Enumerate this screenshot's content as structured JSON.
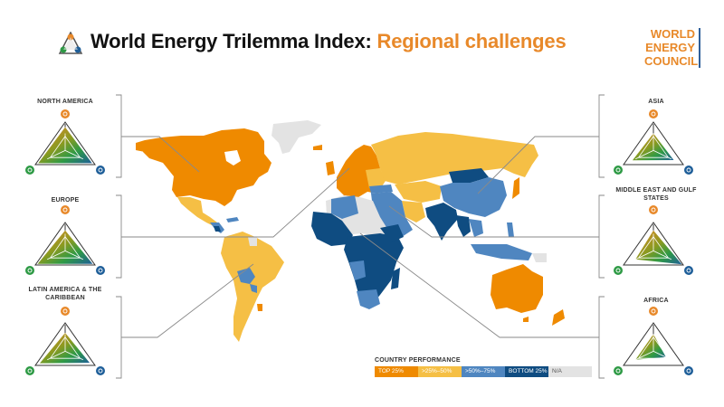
{
  "header": {
    "title_main": "World Energy Trilemma Index: ",
    "title_accent": "Regional challenges",
    "logo_icon": "trilemma-triangle-icon",
    "brand": {
      "line1": "WORLD",
      "line2": "ENERGY",
      "line3": "COUNCIL"
    }
  },
  "colors": {
    "top25": "#ef8a00",
    "q2": "#f5bf45",
    "q3": "#4f86c0",
    "bottom25": "#0f4c81",
    "na": "#e3e3e3",
    "security": "#e8892a",
    "equity": "#1f5f99",
    "sustainability": "#2e9a45"
  },
  "regions": [
    {
      "id": "north-america",
      "label": "NORTH AMERICA",
      "side": "left",
      "values": {
        "security": 0.82,
        "equity": 0.9,
        "sustainability": 0.9
      }
    },
    {
      "id": "europe",
      "label": "EUROPE",
      "side": "left",
      "values": {
        "security": 0.72,
        "equity": 0.92,
        "sustainability": 0.92
      }
    },
    {
      "id": "latin-america",
      "label": "LATIN AMERICA & THE CARIBBEAN",
      "side": "left",
      "values": {
        "security": 0.65,
        "equity": 0.82,
        "sustainability": 0.85
      }
    },
    {
      "id": "asia",
      "label": "ASIA",
      "side": "right",
      "values": {
        "security": 0.6,
        "equity": 0.68,
        "sustainability": 0.7
      }
    },
    {
      "id": "middle-east",
      "label": "MIDDLE EAST AND GULF STATES",
      "side": "right",
      "values": {
        "security": 0.72,
        "equity": 0.95,
        "sustainability": 0.6
      }
    },
    {
      "id": "africa",
      "label": "AFRICA",
      "side": "right",
      "values": {
        "security": 0.6,
        "equity": 0.42,
        "sustainability": 0.6
      }
    }
  ],
  "axes": {
    "top": "energy-security-icon",
    "left": "environmental-sustainability-icon",
    "right": "energy-equity-icon"
  },
  "legend": {
    "title": "COUNTRY PERFORMANCE",
    "items": [
      {
        "label": "TOP 25%",
        "color": "#ef8a00"
      },
      {
        "label": ">25%–50%",
        "color": "#f5bf45"
      },
      {
        "label": ">50%–75%",
        "color": "#4f86c0"
      },
      {
        "label": "BOTTOM 25%",
        "color": "#0f4c81"
      },
      {
        "label": "N/A",
        "color": "#e3e3e3"
      }
    ]
  }
}
